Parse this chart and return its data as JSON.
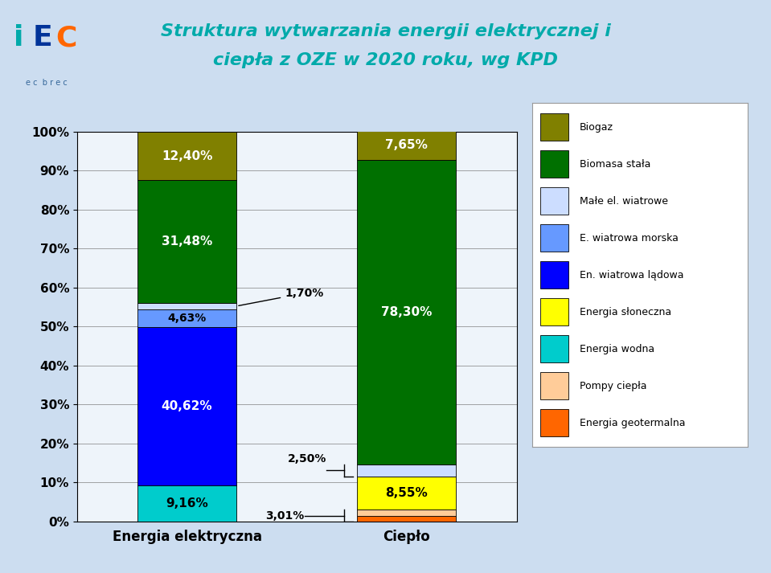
{
  "title_line1": "Struktura wytwarzania energii elektrycznej i",
  "title_line2": "ciepła z OZE w 2020 roku, wg KPD",
  "categories": [
    "Energia elektryczna",
    "Ciepło"
  ],
  "segments": [
    {
      "label": "Energia geotermalna",
      "color": "#FF6600",
      "values": [
        0.0,
        1.5
      ]
    },
    {
      "label": "Pompy ciepła",
      "color": "#FFCC99",
      "values": [
        0.0,
        1.51
      ]
    },
    {
      "label": "Energia wodna",
      "color": "#00CCCC",
      "values": [
        9.16,
        0.0
      ]
    },
    {
      "label": "Energia słoneczna",
      "color": "#FFFF00",
      "values": [
        0.0,
        8.55
      ]
    },
    {
      "label": "En. wiatrowa lądowa",
      "color": "#0000FF",
      "values": [
        40.62,
        0.0
      ]
    },
    {
      "label": "E. wiatrowa morska",
      "color": "#6699FF",
      "values": [
        4.63,
        0.0
      ]
    },
    {
      "label": "Małe el. wiatrowe",
      "color": "#CCDDFF",
      "values": [
        1.7,
        3.01
      ]
    },
    {
      "label": "Biomasa stała",
      "color": "#007000",
      "values": [
        31.48,
        78.3
      ]
    },
    {
      "label": "Biogaz",
      "color": "#808000",
      "values": [
        12.4,
        7.65
      ]
    }
  ],
  "ylabel_ticks": [
    "0%",
    "10%",
    "20%",
    "30%",
    "40%",
    "50%",
    "60%",
    "70%",
    "80%",
    "90%",
    "100%"
  ],
  "background_color": "#CCDDF0",
  "plot_bg": "#EEF4FA",
  "bar_width": 0.45,
  "title_color": "#00AAAA",
  "title_fontsize": 16,
  "legend_order": [
    "Biogaz",
    "Biomasa stała",
    "Małe el. wiatrowe",
    "E. wiatrowa morska",
    "En. wiatrowa lądowa",
    "Energia słoneczna",
    "Energia wodna",
    "Pompy ciepła",
    "Energia geotermalna"
  ]
}
